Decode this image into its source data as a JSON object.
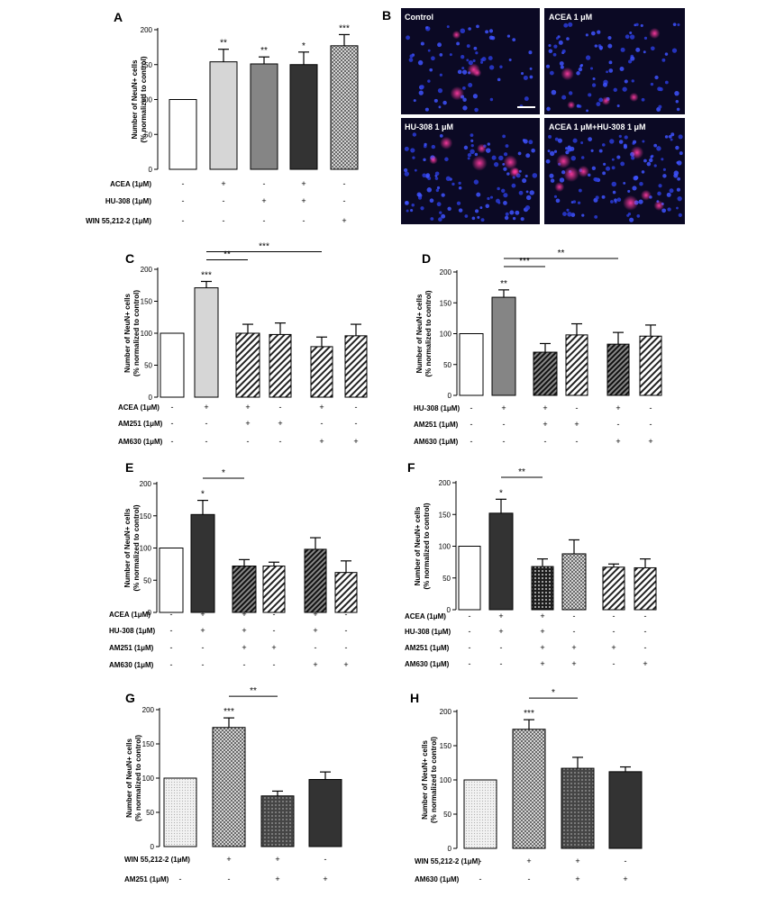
{
  "figure": {
    "ylabel_lines": [
      "Number of NeuN+ cells",
      "(% normalized to control)"
    ],
    "yticks": [
      0,
      50,
      100,
      150,
      200
    ]
  },
  "micrographs": {
    "panel": "B",
    "labels": [
      "Control",
      "ACEA 1 μM",
      "HU-308 1 μM",
      "ACEA 1 μM+HU-308 1 μM"
    ]
  },
  "chart_data": [
    {
      "panel": "A",
      "type": "bar",
      "ylim": [
        0,
        200
      ],
      "values": [
        100,
        154,
        151,
        150,
        177
      ],
      "errors": [
        0,
        18,
        10,
        18,
        16
      ],
      "patterns": [
        "white",
        "light",
        "mid",
        "dark",
        "check"
      ],
      "stars": [
        "",
        "**",
        "**",
        "*",
        "***"
      ],
      "treatments": [
        {
          "label": "ACEA (1μM)",
          "signs": [
            "-",
            "+",
            "-",
            "+",
            "-"
          ]
        },
        {
          "label": "HU-308 (1μM)",
          "signs": [
            "-",
            "-",
            "+",
            "+",
            "-"
          ]
        },
        {
          "label": "WIN 55,212-2 (1μM)",
          "signs": [
            "-",
            "-",
            "-",
            "-",
            "+"
          ]
        }
      ],
      "brackets": []
    },
    {
      "panel": "C",
      "type": "bar",
      "ylim": [
        0,
        200
      ],
      "values": [
        100,
        171,
        100,
        98,
        79,
        96
      ],
      "errors": [
        0,
        10,
        14,
        18,
        15,
        18
      ],
      "patterns": [
        "white",
        "light",
        "hatch",
        "hatch",
        "hatch",
        "hatch"
      ],
      "stars": [
        "",
        "***",
        "",
        "",
        "",
        ""
      ],
      "treatments": [
        {
          "label": "ACEA (1μM)",
          "signs": [
            "-",
            "+",
            "+",
            "-",
            "+",
            "-"
          ]
        },
        {
          "label": "AM251 (1μM)",
          "signs": [
            "-",
            "-",
            "+",
            "+",
            "-",
            "-"
          ]
        },
        {
          "label": "AM630 (1μM)",
          "signs": [
            "-",
            "-",
            "-",
            "-",
            "+",
            "+"
          ]
        }
      ],
      "brackets": [
        {
          "from": 1,
          "to": 2,
          "label": "**",
          "level": 0
        },
        {
          "from": 1,
          "to": 4,
          "label": "***",
          "level": 1
        }
      ]
    },
    {
      "panel": "D",
      "type": "bar",
      "ylim": [
        0,
        200
      ],
      "values": [
        100,
        159,
        70,
        98,
        83,
        96
      ],
      "errors": [
        0,
        12,
        14,
        18,
        19,
        18
      ],
      "patterns": [
        "white",
        "mid",
        "hatchdark",
        "hatch",
        "hatchdark",
        "hatch"
      ],
      "stars": [
        "",
        "**",
        "",
        "",
        "",
        ""
      ],
      "treatments": [
        {
          "label": "HU-308 (1μM)",
          "signs": [
            "-",
            "+",
            "+",
            "-",
            "+",
            "-"
          ]
        },
        {
          "label": "AM251 (1μM)",
          "signs": [
            "-",
            "-",
            "+",
            "+",
            "-",
            "-"
          ]
        },
        {
          "label": "AM630 (1μM)",
          "signs": [
            "-",
            "-",
            "-",
            "-",
            "+",
            "+"
          ]
        }
      ],
      "brackets": [
        {
          "from": 1,
          "to": 2,
          "label": "***",
          "level": 0
        },
        {
          "from": 1,
          "to": 4,
          "label": "**",
          "level": 1
        }
      ]
    },
    {
      "panel": "E",
      "type": "bar",
      "ylim": [
        0,
        200
      ],
      "values": [
        100,
        152,
        72,
        72,
        98,
        62
      ],
      "errors": [
        0,
        22,
        10,
        6,
        18,
        18
      ],
      "patterns": [
        "white",
        "dark",
        "hatchdark",
        "hatch",
        "hatchdark",
        "hatch"
      ],
      "stars": [
        "",
        "*",
        "",
        "",
        "",
        ""
      ],
      "treatments": [
        {
          "label": "ACEA (1μM)",
          "signs": [
            "-",
            "+",
            "+",
            "-",
            "+",
            "-"
          ]
        },
        {
          "label": "HU-308 (1μM)",
          "signs": [
            "-",
            "+",
            "+",
            "-",
            "+",
            "-"
          ]
        },
        {
          "label": "AM251 (1μM)",
          "signs": [
            "-",
            "-",
            "+",
            "+",
            "-",
            "-"
          ]
        },
        {
          "label": "AM630 (1μM)",
          "signs": [
            "-",
            "-",
            "-",
            "-",
            "+",
            "+"
          ]
        }
      ],
      "brackets": [
        {
          "from": 1,
          "to": 2,
          "label": "*",
          "level": 0
        }
      ]
    },
    {
      "panel": "F",
      "type": "bar",
      "ylim": [
        0,
        200
      ],
      "values": [
        100,
        152,
        68,
        88,
        67,
        66
      ],
      "errors": [
        0,
        22,
        12,
        22,
        5,
        14
      ],
      "patterns": [
        "white",
        "dark",
        "dots",
        "check",
        "hatch",
        "hatch"
      ],
      "stars": [
        "",
        "*",
        "",
        "",
        "",
        ""
      ],
      "treatments": [
        {
          "label": "ACEA (1μM)",
          "signs": [
            "-",
            "+",
            "+",
            "-",
            "-",
            "-"
          ]
        },
        {
          "label": "HU-308 (1μM)",
          "signs": [
            "-",
            "+",
            "+",
            "-",
            "-",
            "-"
          ]
        },
        {
          "label": "AM251 (1μM)",
          "signs": [
            "-",
            "-",
            "+",
            "+",
            "+",
            "-"
          ]
        },
        {
          "label": "AM630 (1μM)",
          "signs": [
            "-",
            "-",
            "+",
            "+",
            "-",
            "+"
          ]
        }
      ],
      "brackets": [
        {
          "from": 1,
          "to": 2,
          "label": "**",
          "level": 0
        }
      ]
    },
    {
      "panel": "G",
      "type": "bar",
      "ylim": [
        0,
        200
      ],
      "values": [
        100,
        174,
        74,
        98
      ],
      "errors": [
        0,
        14,
        7,
        11
      ],
      "patterns": [
        "fine",
        "check",
        "darkdots",
        "dark"
      ],
      "stars": [
        "",
        "***",
        "",
        ""
      ],
      "treatments": [
        {
          "label": "WIN 55,212-2 (1μM)",
          "signs": [
            "-",
            "+",
            "+",
            "-"
          ]
        },
        {
          "label": "AM251 (1μM)",
          "signs": [
            "-",
            "-",
            "+",
            "+"
          ]
        }
      ],
      "brackets": [
        {
          "from": 1,
          "to": 2,
          "label": "**",
          "level": 0
        }
      ]
    },
    {
      "panel": "H",
      "type": "bar",
      "ylim": [
        0,
        200
      ],
      "values": [
        100,
        174,
        117,
        112
      ],
      "errors": [
        0,
        14,
        16,
        7
      ],
      "patterns": [
        "fine",
        "check",
        "darkdots",
        "dark"
      ],
      "stars": [
        "",
        "***",
        "",
        ""
      ],
      "treatments": [
        {
          "label": "WIN 55,212-2 (1μM)",
          "signs": [
            "-",
            "+",
            "+",
            "-"
          ]
        },
        {
          "label": "AM630 (1μM)",
          "signs": [
            "-",
            "-",
            "+",
            "+"
          ]
        }
      ],
      "brackets": [
        {
          "from": 1,
          "to": 2,
          "label": "*",
          "level": 0
        }
      ]
    }
  ]
}
